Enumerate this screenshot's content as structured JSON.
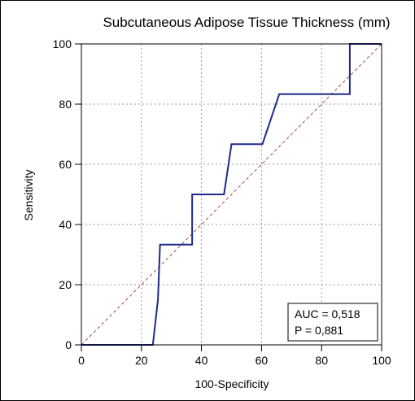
{
  "chart_data": {
    "type": "line",
    "title": "Subcutaneous Adipose Tissue Thickness (mm)",
    "xlabel": "100-Specificity",
    "ylabel": "Sensitivity",
    "xlim": [
      0,
      100
    ],
    "ylim": [
      0,
      100
    ],
    "x_ticks": [
      "0",
      "20",
      "40",
      "60",
      "80",
      "100"
    ],
    "y_ticks": [
      "0",
      "20",
      "40",
      "60",
      "80",
      "100"
    ],
    "grid": true,
    "series": [
      {
        "color": "#1f2a8a",
        "points": [
          {
            "x": 0,
            "y": 0
          },
          {
            "x": 23.8,
            "y": 0
          },
          {
            "x": 25.5,
            "y": 15
          },
          {
            "x": 26.2,
            "y": 33.3
          },
          {
            "x": 36.9,
            "y": 33.3
          },
          {
            "x": 36.9,
            "y": 50
          },
          {
            "x": 47.5,
            "y": 50
          },
          {
            "x": 50,
            "y": 66.7
          },
          {
            "x": 60.3,
            "y": 66.7
          },
          {
            "x": 65.9,
            "y": 83.3
          },
          {
            "x": 89.4,
            "y": 83.3
          },
          {
            "x": 89.4,
            "y": 100
          },
          {
            "x": 100,
            "y": 100
          }
        ]
      }
    ],
    "reference_line": {
      "from": [
        0,
        0
      ],
      "to": [
        100,
        100
      ],
      "color": "#a0524a",
      "style": "dashed"
    },
    "annotation": {
      "lines": [
        "AUC = 0,518",
        "P = 0,881"
      ],
      "placement": "bottom-right"
    }
  }
}
